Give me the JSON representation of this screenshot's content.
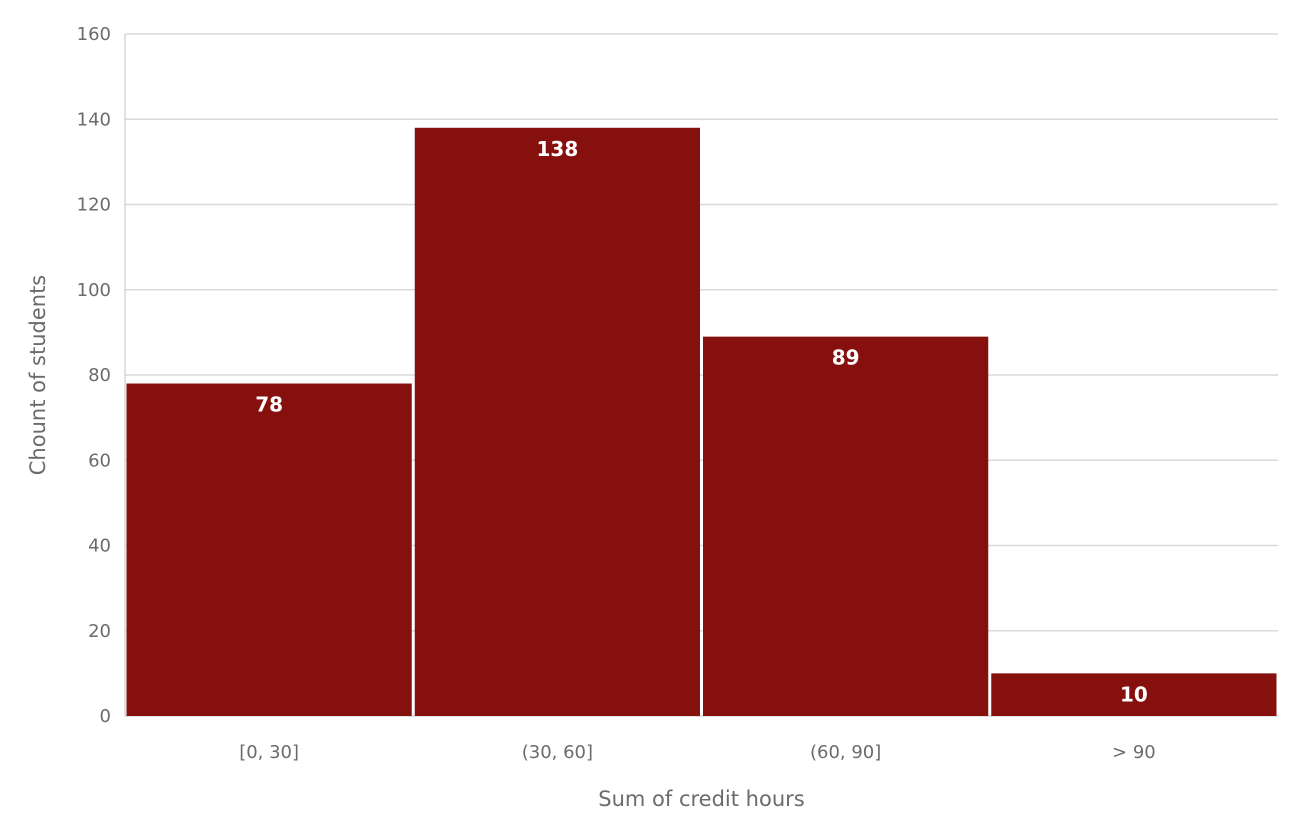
{
  "chart_data": {
    "type": "bar",
    "title": "",
    "xlabel": "Sum of credit hours",
    "ylabel": "Chount of students",
    "categories": [
      "[0, 30]",
      "(30, 60]",
      "(60, 90]",
      "> 90"
    ],
    "values": [
      78,
      138,
      89,
      10
    ],
    "data_labels": [
      "78",
      "138",
      "89",
      "10"
    ],
    "ylim": [
      0,
      160
    ],
    "yticks": [
      0,
      20,
      40,
      60,
      80,
      100,
      120,
      140,
      160
    ],
    "grid": true,
    "legend": "none",
    "bar_color": "#85100e",
    "grid_color": "#d9d9d9",
    "text_color": "#6b6b6b",
    "title_color": "#8b1010"
  }
}
